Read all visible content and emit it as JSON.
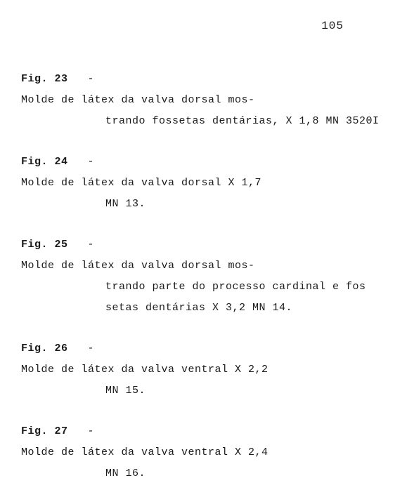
{
  "page_number": "105",
  "figures": [
    {
      "label": "Fig. 23",
      "line1": "Molde de látex da valva dorsal mos-",
      "line2": "trando fossetas dentárias, X 1,8 MN 3520I"
    },
    {
      "label": "Fig. 24",
      "line1": "Molde de látex da valva dorsal X 1,7",
      "line2": "MN 13."
    },
    {
      "label": "Fig. 25",
      "line1": "Molde de látex da valva dorsal mos-",
      "line2": "trando parte do processo cardinal e fos",
      "line3": "setas dentárias X 3,2 MN 14."
    },
    {
      "label": "Fig. 26",
      "line1": "Molde de látex da valva ventral X 2,2",
      "line2": "MN 15."
    },
    {
      "label": "Fig. 27",
      "line1": "Molde de látex da valva ventral X 2,4",
      "line2": "MN 16."
    }
  ]
}
